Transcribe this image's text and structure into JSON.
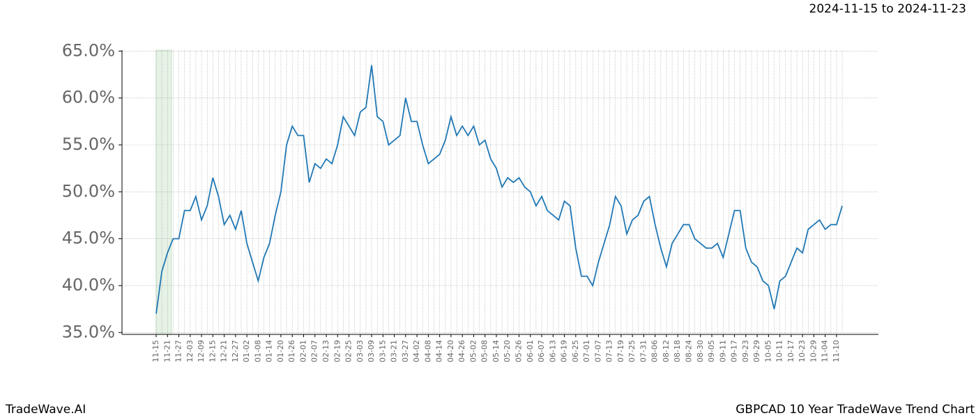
{
  "chart_data": {
    "type": "line",
    "title": "GBPCAD 10 Year TradeWave Trend Chart",
    "date_range": "2024-11-15 to 2024-11-23",
    "brand": "TradeWave.AI",
    "categories": [
      "11-15",
      null,
      "11-21",
      null,
      "11-27",
      null,
      "12-03",
      null,
      "12-09",
      null,
      "12-15",
      null,
      "12-21",
      null,
      "12-27",
      null,
      "01-02",
      null,
      "01-08",
      null,
      "01-14",
      null,
      "01-20",
      null,
      "01-26",
      null,
      "02-01",
      null,
      "02-07",
      null,
      "02-13",
      null,
      "02-19",
      null,
      "02-25",
      null,
      "03-03",
      null,
      "03-09",
      null,
      "03-15",
      null,
      "03-21",
      null,
      "03-27",
      null,
      "04-02",
      null,
      "04-08",
      null,
      "04-14",
      null,
      "04-20",
      null,
      "04-26",
      null,
      "05-02",
      null,
      "05-08",
      null,
      "05-14",
      null,
      "05-20",
      null,
      "05-26",
      null,
      "06-01",
      null,
      "06-07",
      null,
      "06-13",
      null,
      "06-19",
      null,
      "06-25",
      null,
      "07-01",
      null,
      "07-07",
      null,
      "07-13",
      null,
      "07-19",
      null,
      "07-25",
      null,
      "07-31",
      null,
      "08-06",
      null,
      "08-12",
      null,
      "08-18",
      null,
      "08-24",
      null,
      "08-30",
      null,
      "09-05",
      null,
      "09-11",
      null,
      "09-17",
      null,
      "09-23",
      null,
      "09-29",
      null,
      "10-05",
      null,
      "10-11",
      null,
      "10-17",
      null,
      "10-23",
      null,
      "10-29",
      null,
      "11-04",
      null,
      "11-10",
      null
    ],
    "series": [
      {
        "color": "#1f77b4",
        "values": [
          37.0,
          41.5,
          43.5,
          45.0,
          45.0,
          48.0,
          48.0,
          49.5,
          47.0,
          48.5,
          51.5,
          49.5,
          46.5,
          47.5,
          46.0,
          48.0,
          44.5,
          42.5,
          40.5,
          43.0,
          44.5,
          47.5,
          50.0,
          55.0,
          57.0,
          56.0,
          56.0,
          51.0,
          53.0,
          52.5,
          53.5,
          53.0,
          55.0,
          58.0,
          57.0,
          56.0,
          58.5,
          59.0,
          63.5,
          58.0,
          57.5,
          55.0,
          55.5,
          56.0,
          60.0,
          57.5,
          57.5,
          55.0,
          53.0,
          53.5,
          54.0,
          55.5,
          58.0,
          56.0,
          57.0,
          56.0,
          57.0,
          55.0,
          55.5,
          53.5,
          52.5,
          50.5,
          51.5,
          51.0,
          51.5,
          50.5,
          50.0,
          48.5,
          49.5,
          48.0,
          47.5,
          47.0,
          49.0,
          48.5,
          44.0,
          41.0,
          41.0,
          40.0,
          42.5,
          44.5,
          46.5,
          49.5,
          48.5,
          45.5,
          47.0,
          47.5,
          49.0,
          49.5,
          46.5,
          44.0,
          42.0,
          44.5,
          45.5,
          46.5,
          46.5,
          45.0,
          44.5,
          44.0,
          44.0,
          44.5,
          43.0,
          45.5,
          48.0,
          48.0,
          44.0,
          42.5,
          42.0,
          40.5,
          40.0,
          37.5,
          40.5,
          41.0,
          42.5,
          44.0,
          43.5,
          46.0,
          46.5,
          47.0,
          46.0,
          46.5,
          46.5,
          48.5
        ]
      }
    ],
    "ylim": [
      34.8,
      65.1
    ],
    "yticks": [
      {
        "value": 35,
        "label": "35.0%"
      },
      {
        "value": 40,
        "label": "40.0%"
      },
      {
        "value": 45,
        "label": "45.0%"
      },
      {
        "value": 50,
        "label": "50.0%"
      },
      {
        "value": 55,
        "label": "55.0%"
      },
      {
        "value": 60,
        "label": "60.0%"
      },
      {
        "value": 65,
        "label": "65.0%"
      }
    ],
    "grid": true
  }
}
